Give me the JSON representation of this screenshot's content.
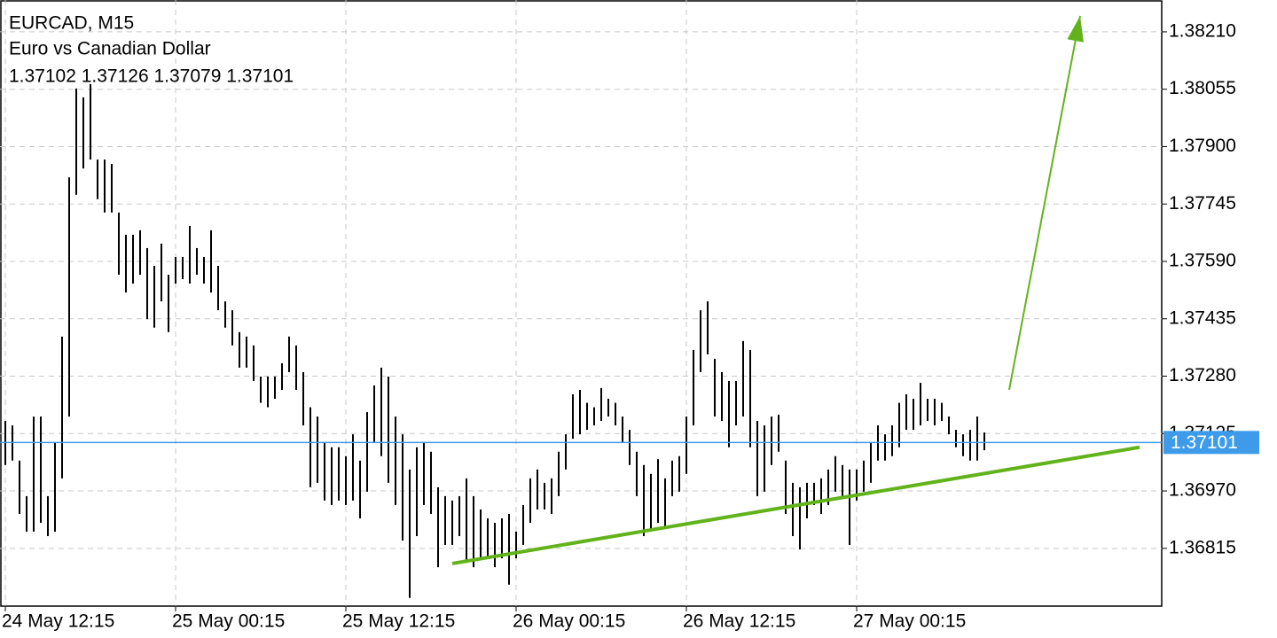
{
  "chart_data": {
    "type": "ohlc-bars",
    "symbol": "EURCAD, M15",
    "subtitle": "Euro vs Canadian Dollar",
    "ohlc_info": "1.37102 1.37126 1.37079 1.37101",
    "color": "#000000",
    "high": [
      1.37159,
      1.37147,
      1.37052,
      1.36956,
      1.37171,
      1.37171,
      1.36956,
      1.371,
      1.37387,
      1.37817,
      1.38057,
      1.38033,
      1.38069,
      1.37865,
      1.37865,
      1.37853,
      1.37722,
      1.37662,
      1.37662,
      1.37674,
      1.37626,
      1.37578,
      1.37638,
      1.37554,
      1.37602,
      1.37602,
      1.37686,
      1.37626,
      1.37602,
      1.37674,
      1.37578,
      1.37482,
      1.37458,
      1.37399,
      1.37387,
      1.37363,
      1.37279,
      1.37279,
      1.37279,
      1.37315,
      1.37387,
      1.37363,
      1.37291,
      1.37196,
      1.37171,
      1.371,
      1.37088,
      1.37088,
      1.37064,
      1.37123,
      1.37052,
      1.37183,
      1.37255,
      1.37303,
      1.37279,
      1.37171,
      1.37123,
      1.37028,
      1.37088,
      1.371,
      1.37076,
      1.3698,
      1.36956,
      1.36944,
      1.36956,
      1.37004,
      1.36956,
      1.3692,
      1.36896,
      1.36884,
      1.36896,
      1.36908,
      1.3686,
      1.36932,
      1.37004,
      1.37028,
      1.36992,
      1.37004,
      1.37076,
      1.37123,
      1.37231,
      1.37243,
      1.37208,
      1.37196,
      1.37248,
      1.37219,
      1.37208,
      1.37171,
      1.37135,
      1.37076,
      1.3704,
      1.37016,
      1.37056,
      1.37004,
      1.37052,
      1.37064,
      1.37171,
      1.37351,
      1.37458,
      1.37482,
      1.37327,
      1.37291,
      1.37267,
      1.37267,
      1.37375,
      1.37351,
      1.37159,
      1.37147,
      1.37171,
      1.37176,
      1.37052,
      1.36992,
      1.3698,
      1.36992,
      1.36992,
      1.37004,
      1.37028,
      1.37064,
      1.3704,
      1.37028,
      1.37028,
      1.37052,
      1.371,
      1.37147,
      1.37123,
      1.37147,
      1.37208,
      1.37231,
      1.37219,
      1.37262,
      1.37219,
      1.37219,
      1.37208,
      1.37171,
      1.37135,
      1.37123,
      1.37135,
      1.37171,
      1.37128
    ],
    "low": [
      1.3704,
      1.37052,
      1.36908,
      1.3686,
      1.3686,
      1.36884,
      1.36848,
      1.3686,
      1.37004,
      1.37171,
      1.3777,
      1.37841,
      1.37865,
      1.37758,
      1.37722,
      1.37722,
      1.37554,
      1.37506,
      1.3753,
      1.37554,
      1.37434,
      1.37411,
      1.37482,
      1.37399,
      1.3753,
      1.37542,
      1.3753,
      1.37554,
      1.3753,
      1.37506,
      1.37458,
      1.37411,
      1.37363,
      1.37303,
      1.37303,
      1.37267,
      1.37208,
      1.37196,
      1.37219,
      1.37243,
      1.37291,
      1.37243,
      1.37147,
      1.3698,
      1.36992,
      1.36944,
      1.36932,
      1.36944,
      1.36932,
      1.36944,
      1.36896,
      1.36968,
      1.371,
      1.37064,
      1.36992,
      1.36932,
      1.36836,
      1.36681,
      1.36848,
      1.36932,
      1.36908,
      1.36764,
      1.36824,
      1.36824,
      1.36848,
      1.36776,
      1.36764,
      1.36788,
      1.36788,
      1.36764,
      1.36788,
      1.36717,
      1.36788,
      1.36824,
      1.36884,
      1.3692,
      1.3692,
      1.36908,
      1.36956,
      1.37028,
      1.37111,
      1.37123,
      1.37135,
      1.37147,
      1.37159,
      1.37171,
      1.37147,
      1.371,
      1.3704,
      1.36956,
      1.36848,
      1.3686,
      1.36884,
      1.36872,
      1.36956,
      1.36968,
      1.37016,
      1.37147,
      1.37291,
      1.37339,
      1.37171,
      1.37159,
      1.37088,
      1.37147,
      1.37171,
      1.37088,
      1.36956,
      1.36968,
      1.3704,
      1.37076,
      1.36908,
      1.36848,
      1.36812,
      1.36896,
      1.36932,
      1.36908,
      1.36932,
      1.36968,
      1.36956,
      1.36824,
      1.36944,
      1.36968,
      1.36992,
      1.37052,
      1.37052,
      1.37064,
      1.37088,
      1.37135,
      1.37135,
      1.37147,
      1.37159,
      1.37147,
      1.37159,
      1.37123,
      1.37088,
      1.37064,
      1.37052,
      1.37052,
      1.3708
    ],
    "xlim": [
      -0.75,
      163
    ],
    "xticks": [
      {
        "value": 0,
        "label": "24 May 12:15"
      },
      {
        "value": 24,
        "label": "25 May 00:15"
      },
      {
        "value": 48,
        "label": "25 May 12:15"
      },
      {
        "value": 72,
        "label": "26 May 00:15"
      },
      {
        "value": 96,
        "label": "26 May 12:15"
      },
      {
        "value": 120,
        "label": "27 May 00:15"
      }
    ],
    "ylim": [
      1.36659,
      1.38296
    ],
    "yticks": [
      {
        "value": 1.3821,
        "label": "1.38210"
      },
      {
        "value": 1.38055,
        "label": "1.38055"
      },
      {
        "value": 1.379,
        "label": "1.37900"
      },
      {
        "value": 1.37745,
        "label": "1.37745"
      },
      {
        "value": 1.3759,
        "label": "1.37590"
      },
      {
        "value": 1.37435,
        "label": "1.37435"
      },
      {
        "value": 1.3728,
        "label": "1.37280"
      },
      {
        "value": 1.37125,
        "label": "1.37125"
      },
      {
        "value": 1.3697,
        "label": "1.36970"
      },
      {
        "value": 1.36815,
        "label": "1.36815"
      }
    ],
    "grid": true,
    "current_price": 1.37101,
    "current_price_color": "#3d9be9",
    "trendline": {
      "color": "#62b31b",
      "x": [
        63,
        159.875
      ],
      "y": [
        1.36774,
        1.37088
      ]
    },
    "arrow": {
      "color": "#62b31b",
      "x": [
        141.5,
        151.5
      ],
      "y": [
        1.37243,
        1.38253
      ]
    }
  }
}
